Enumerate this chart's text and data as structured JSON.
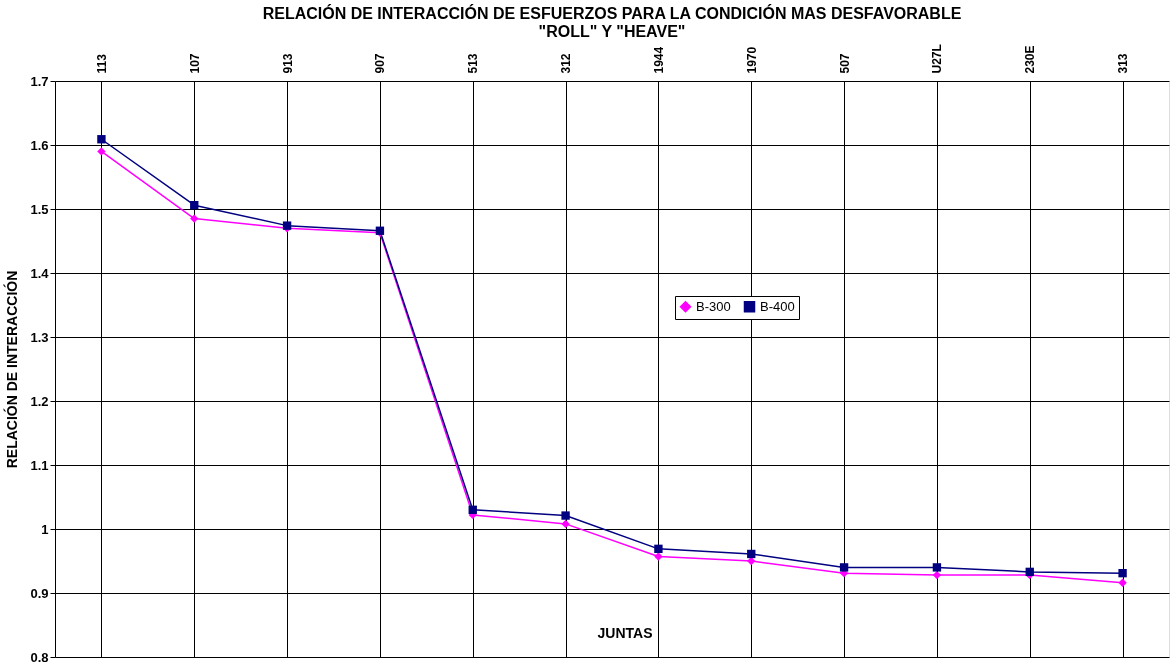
{
  "chart_data": {
    "type": "line",
    "title": [
      "RELACIÓN DE INTERACCIÓN DE ESFUERZOS PARA LA CONDICIÓN MAS DESFAVORABLE",
      "\"ROLL\" Y \"HEAVE\""
    ],
    "xlabel": "JUNTAS",
    "ylabel": "RELACIÓN DE INTERACCIÓN",
    "categories": [
      "113",
      "107",
      "913",
      "907",
      "513",
      "312",
      "1944",
      "1970",
      "507",
      "U27L",
      "230E",
      "313"
    ],
    "series": [
      {
        "name": "B-300",
        "color": "#ff00ff",
        "marker": "diamond",
        "values": [
          1.59,
          1.485,
          1.47,
          1.463,
          1.022,
          1.008,
          0.957,
          0.95,
          0.931,
          0.928,
          0.928,
          0.916
        ]
      },
      {
        "name": "B-400",
        "color": "#000080",
        "marker": "square",
        "values": [
          1.609,
          1.506,
          1.474,
          1.466,
          1.03,
          1.021,
          0.969,
          0.961,
          0.94,
          0.94,
          0.933,
          0.931
        ]
      }
    ],
    "ylim": [
      0.8,
      1.7
    ],
    "yticks": [
      0.8,
      0.9,
      1,
      1.1,
      1.2,
      1.3,
      1.4,
      1.5,
      1.6,
      1.7
    ],
    "grid": true,
    "legend": "center",
    "line_style": "solid"
  }
}
